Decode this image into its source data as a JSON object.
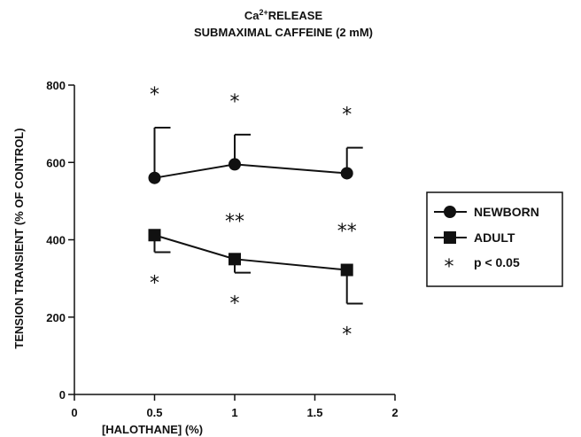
{
  "chart_data": {
    "type": "line",
    "title": "Ca2+RELEASE",
    "title_parts": {
      "prefix": "Ca",
      "superscript": "2+",
      "suffix": "RELEASE"
    },
    "subtitle": "SUBMAXIMAL CAFFEINE (2 mM)",
    "xlabel": "[HALOTHANE] (%)",
    "ylabel": "TENSION TRANSIENT (% OF CONTROL)",
    "xlim": [
      0,
      2
    ],
    "ylim": [
      0,
      800
    ],
    "xticks": [
      0,
      0.5,
      1,
      1.5,
      2
    ],
    "xtick_labels": [
      "0",
      "0.5",
      "1",
      "1.5",
      "2"
    ],
    "yticks": [
      0,
      200,
      400,
      600,
      800
    ],
    "ytick_labels": [
      "0",
      "200",
      "400",
      "600",
      "800"
    ],
    "grid": false,
    "legend_position": "right",
    "series": [
      {
        "name": "NEWBORN",
        "marker": "circle",
        "x": [
          0.5,
          1,
          1.7
        ],
        "y": [
          560,
          595,
          572
        ],
        "error_up": [
          690,
          672,
          638
        ],
        "significance": [
          "*",
          "*",
          "*"
        ]
      },
      {
        "name": "ADULT",
        "marker": "square",
        "x": [
          0.5,
          1,
          1.7
        ],
        "y": [
          412,
          350,
          322
        ],
        "error_down": [
          368,
          315,
          235
        ],
        "significance": [
          "*",
          "*",
          "*"
        ]
      }
    ],
    "between_series_significance": {
      "x": [
        1,
        1.7
      ],
      "label": "**"
    },
    "legend": {
      "entries": [
        "NEWBORN",
        "ADULT"
      ],
      "note": "p < 0.05",
      "note_marker": "*"
    }
  }
}
